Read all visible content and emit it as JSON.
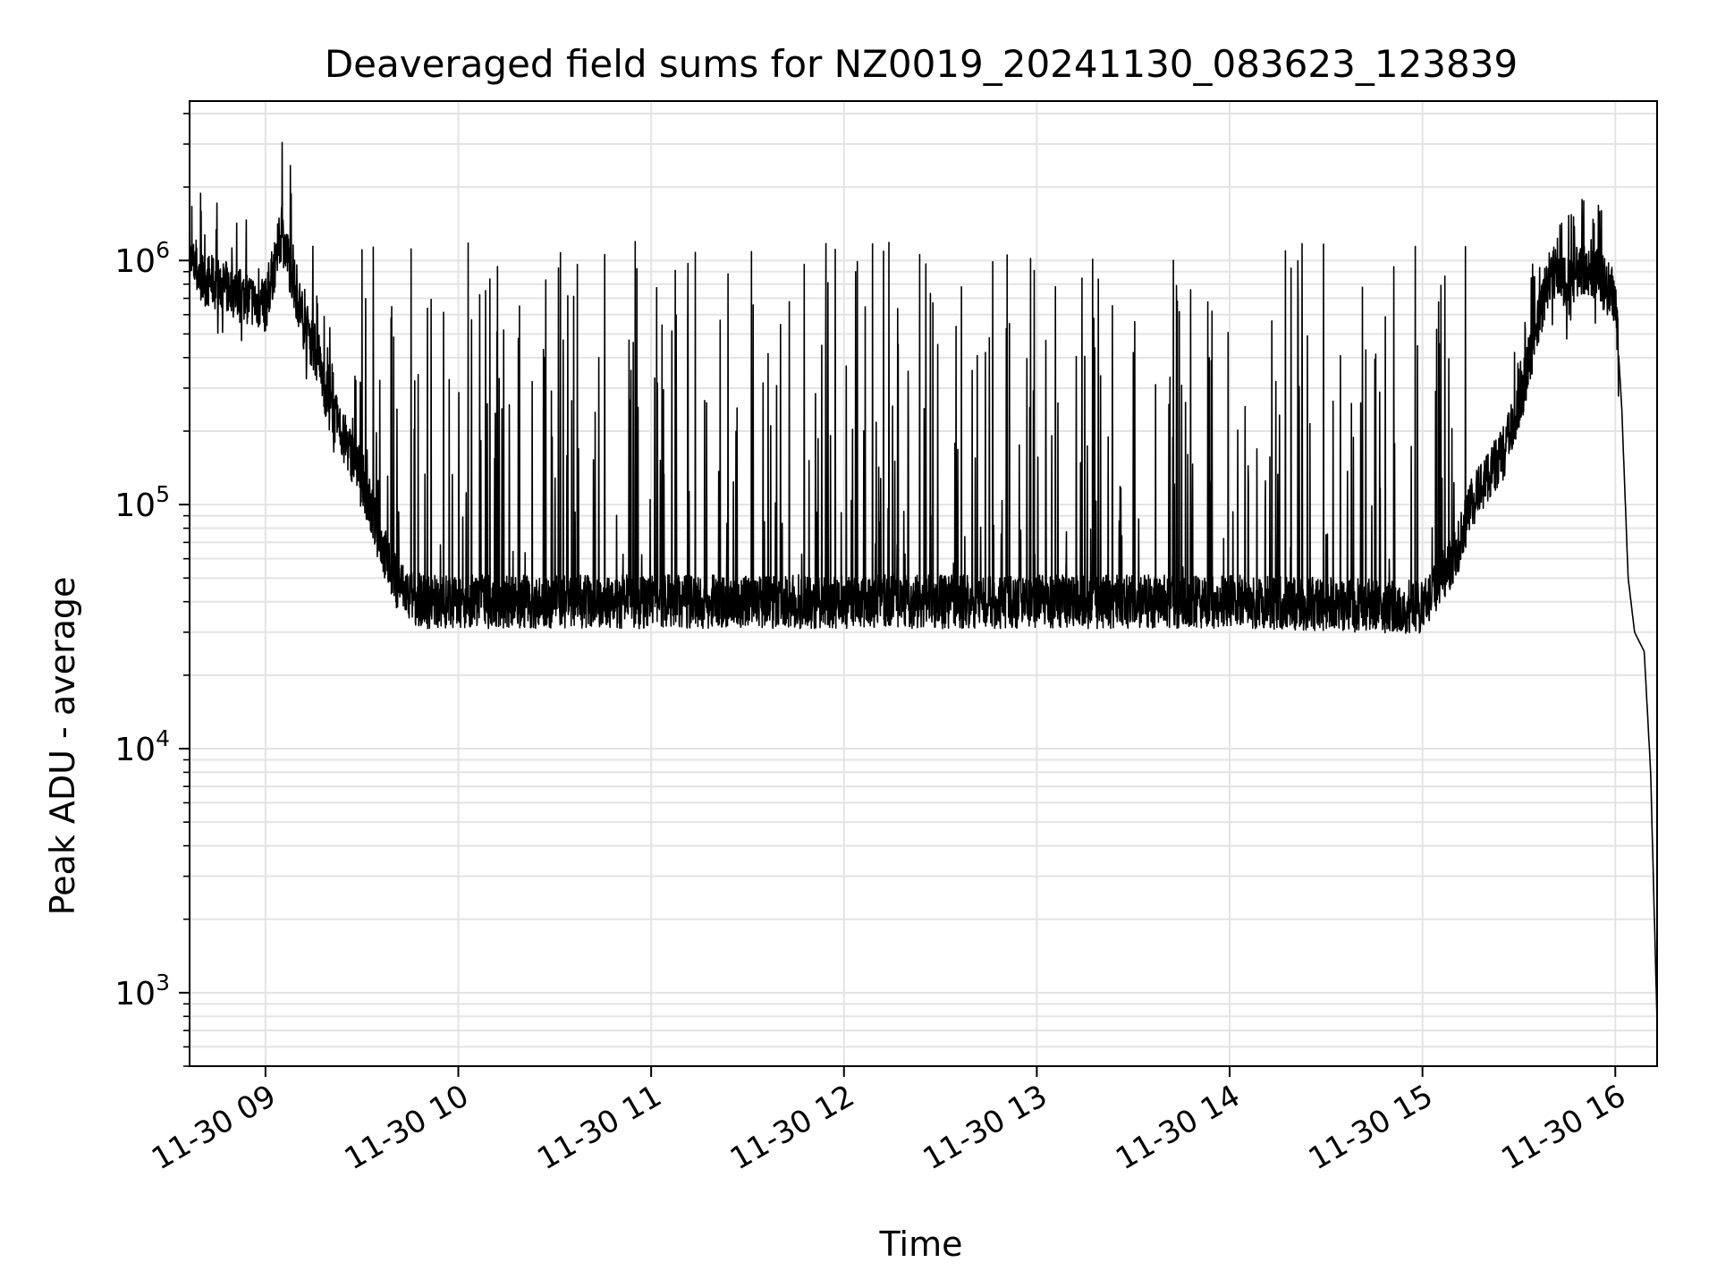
{
  "chart_data": {
    "type": "line",
    "title": "Deaveraged field sums for NZ0019_20241130_083623_123839",
    "xlabel": "Time",
    "ylabel": "Peak ADU - average",
    "yscale": "log",
    "ylim": [
      500,
      4500000
    ],
    "xlim": [
      "2024-11-30 08:36:23",
      "2024-11-30 16:13:00"
    ],
    "grid": true,
    "x_tick_labels": [
      "11-30 09",
      "11-30 10",
      "11-30 11",
      "11-30 12",
      "11-30 13",
      "11-30 14",
      "11-30 15",
      "11-30 16"
    ],
    "y_tick_labels": [
      {
        "base": "10",
        "exp": "3"
      },
      {
        "base": "10",
        "exp": "4"
      },
      {
        "base": "10",
        "exp": "5"
      },
      {
        "base": "10",
        "exp": "6"
      }
    ],
    "series": [
      {
        "color": "#000000",
        "x": [
          "2024-11-30 08:36:23",
          "2024-11-30 08:40",
          "2024-11-30 08:45",
          "2024-11-30 08:50",
          "2024-11-30 08:55",
          "2024-11-30 09:00",
          "2024-11-30 09:05",
          "2024-11-30 09:08",
          "2024-11-30 09:12",
          "2024-11-30 09:15",
          "2024-11-30 09:20",
          "2024-11-30 09:25",
          "2024-11-30 09:30",
          "2024-11-30 09:35",
          "2024-11-30 09:40",
          "2024-11-30 09:45",
          "2024-11-30 09:50",
          "2024-11-30 10:00",
          "2024-11-30 11:00",
          "2024-11-30 12:00",
          "2024-11-30 13:00",
          "2024-11-30 14:00",
          "2024-11-30 15:00",
          "2024-11-30 15:10",
          "2024-11-30 15:15",
          "2024-11-30 15:20",
          "2024-11-30 15:25",
          "2024-11-30 15:30",
          "2024-11-30 15:35",
          "2024-11-30 15:40",
          "2024-11-30 15:45",
          "2024-11-30 15:50",
          "2024-11-30 15:55",
          "2024-11-30 16:00",
          "2024-11-30 16:02",
          "2024-11-30 16:04",
          "2024-11-30 16:06",
          "2024-11-30 16:09",
          "2024-11-30 16:11",
          "2024-11-30 16:13"
        ],
        "y": [
          1000000,
          850000,
          800000,
          750000,
          700000,
          650000,
          1300000,
          900000,
          550000,
          450000,
          250000,
          180000,
          130000,
          75000,
          50000,
          42000,
          40000,
          40000,
          40000,
          40000,
          40000,
          40000,
          38000,
          60000,
          100000,
          130000,
          160000,
          250000,
          500000,
          900000,
          800000,
          950000,
          850000,
          700000,
          250000,
          50000,
          30000,
          25000,
          8000,
          750
        ],
        "spikes_up_to": 1200000,
        "dips_down_to": 27000
      }
    ]
  }
}
